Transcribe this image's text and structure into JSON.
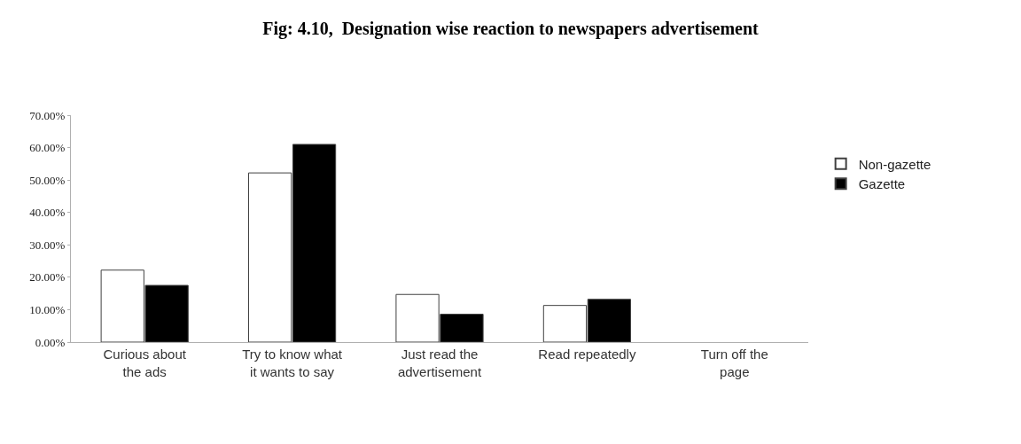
{
  "chart_data": {
    "type": "bar",
    "title": "Fig: 4.10,  Designation wise reaction to newspapers advertisement",
    "categories": [
      "Curious about the ads",
      "Try to know what it wants to say",
      "Just read the advertisement",
      "Read repeatedly",
      "Turn off the page"
    ],
    "series": [
      {
        "name": "Non-gazette",
        "color": "#ffffff",
        "values": [
          22.2,
          52.2,
          14.7,
          11.3,
          0
        ]
      },
      {
        "name": "Gazette",
        "color": "#000000",
        "values": [
          17.5,
          61.0,
          8.6,
          13.2,
          0
        ]
      }
    ],
    "ylim": [
      0,
      70
    ],
    "yticks": [
      {
        "value": 0,
        "label": "0.00%"
      },
      {
        "value": 10,
        "label": "10.00%"
      },
      {
        "value": 20,
        "label": "20.00%"
      },
      {
        "value": 30,
        "label": "30.00%"
      },
      {
        "value": 40,
        "label": "40.00%"
      },
      {
        "value": 50,
        "label": "50.00%"
      },
      {
        "value": 60,
        "label": "60.00%"
      },
      {
        "value": 70,
        "label": "70.00%"
      }
    ],
    "legend": "right"
  }
}
